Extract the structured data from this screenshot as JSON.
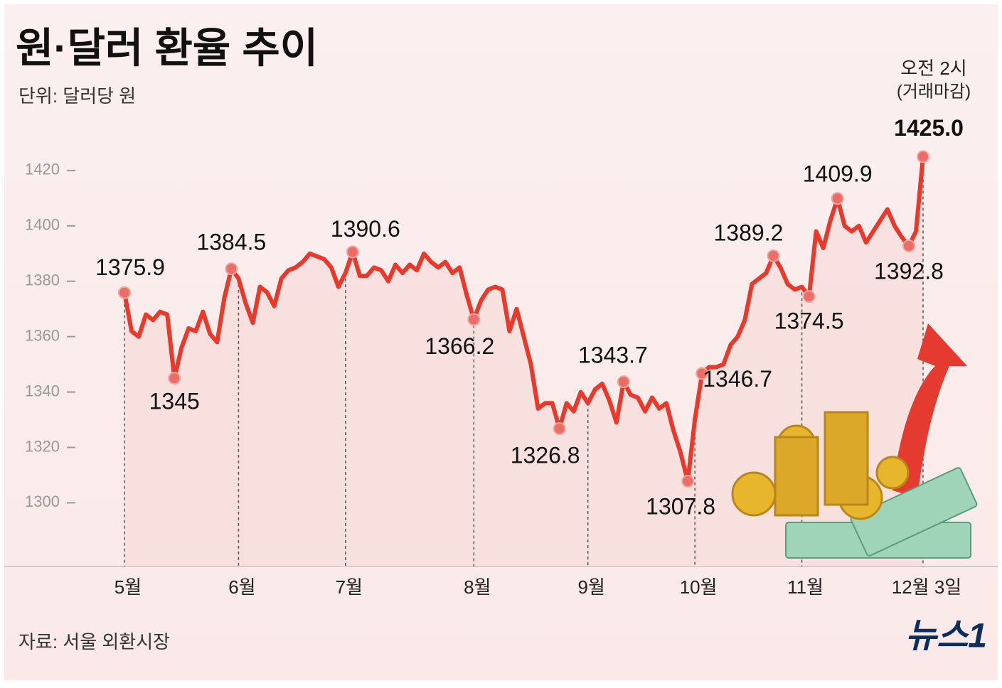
{
  "chart_data": {
    "type": "line",
    "title": "원·달러 환율 추이",
    "subtitle": "단위: 달러당 원",
    "source": "자료: 서울 외환시장",
    "logo": "뉴스1",
    "annotation": [
      "오전 2시",
      "(거래마감)"
    ],
    "color": "#e8392a",
    "categories": [
      "5월",
      null,
      null,
      null,
      null,
      null,
      null,
      null,
      null,
      null,
      null,
      null,
      null,
      null,
      null,
      null,
      "6월",
      null,
      null,
      null,
      null,
      null,
      null,
      null,
      null,
      null,
      null,
      null,
      null,
      null,
      null,
      "7월",
      null,
      null,
      null,
      null,
      null,
      null,
      null,
      null,
      null,
      null,
      null,
      null,
      null,
      null,
      null,
      null,
      null,
      "8월",
      null,
      null,
      null,
      null,
      null,
      null,
      null,
      null,
      null,
      null,
      null,
      null,
      null,
      null,
      null,
      "9월",
      null,
      null,
      null,
      null,
      null,
      null,
      null,
      null,
      null,
      null,
      null,
      null,
      null,
      null,
      "10월",
      null,
      null,
      null,
      null,
      null,
      null,
      null,
      null,
      null,
      null,
      null,
      null,
      null,
      null,
      "11월",
      null,
      null,
      null,
      null,
      null,
      null,
      null,
      null,
      null,
      null,
      null,
      null,
      null,
      null,
      null,
      null,
      "12월 3일"
    ],
    "values": [
      1375.9,
      1362,
      1360,
      1368,
      1366,
      1369,
      1368,
      1345,
      1356,
      1363,
      1362,
      1369,
      1361,
      1358,
      1374,
      1384.5,
      1381,
      1372,
      1365,
      1378,
      1376,
      1371,
      1381,
      1384,
      1385,
      1387,
      1390,
      1389,
      1388,
      1385,
      1378,
      1383,
      1390.6,
      1382,
      1382,
      1385,
      1384,
      1380,
      1386,
      1383,
      1386,
      1384,
      1390,
      1387,
      1385,
      1387,
      1383,
      1385,
      1375,
      1366.2,
      1373,
      1377,
      1378,
      1377,
      1362,
      1370,
      1360,
      1350,
      1334,
      1336,
      1336,
      1326.8,
      1336,
      1333,
      1340,
      1336,
      1341,
      1343,
      1337,
      1329,
      1343.7,
      1339,
      1338,
      1333,
      1338,
      1334,
      1336,
      1326,
      1318,
      1307.8,
      1330,
      1346.7,
      1349,
      1349,
      1350,
      1357,
      1360,
      1366,
      1379,
      1381,
      1383,
      1389.2,
      1385,
      1379,
      1377,
      1378,
      1374.5,
      1398,
      1392,
      1402,
      1409.9,
      1400,
      1398,
      1400,
      1394,
      1398,
      1402,
      1406,
      1400,
      1396,
      1392.8,
      1398,
      1425
    ],
    "value_labels": [
      "1375.9",
      null,
      null,
      null,
      null,
      null,
      null,
      "1345",
      null,
      null,
      null,
      null,
      null,
      null,
      null,
      "1384.5",
      null,
      null,
      null,
      null,
      null,
      null,
      null,
      null,
      null,
      null,
      null,
      null,
      null,
      null,
      null,
      null,
      "1390.6",
      null,
      null,
      null,
      null,
      null,
      null,
      null,
      null,
      null,
      null,
      null,
      null,
      null,
      null,
      null,
      null,
      "1366.2",
      null,
      null,
      null,
      null,
      null,
      null,
      null,
      null,
      null,
      null,
      null,
      "1326.8",
      null,
      null,
      null,
      null,
      null,
      null,
      null,
      null,
      "1343.7",
      null,
      null,
      null,
      null,
      null,
      null,
      null,
      null,
      "1307.8",
      null,
      "1346.7",
      null,
      null,
      null,
      null,
      null,
      null,
      null,
      null,
      null,
      "1389.2",
      null,
      null,
      null,
      null,
      "1374.5",
      null,
      null,
      null,
      "1409.9",
      null,
      null,
      null,
      null,
      null,
      null,
      null,
      null,
      null,
      "1392.8",
      null,
      "1425.0"
    ],
    "ylim": [
      1277,
      1440
    ],
    "yticks": [
      1300,
      1320,
      1340,
      1360,
      1380,
      1400,
      1420
    ]
  }
}
